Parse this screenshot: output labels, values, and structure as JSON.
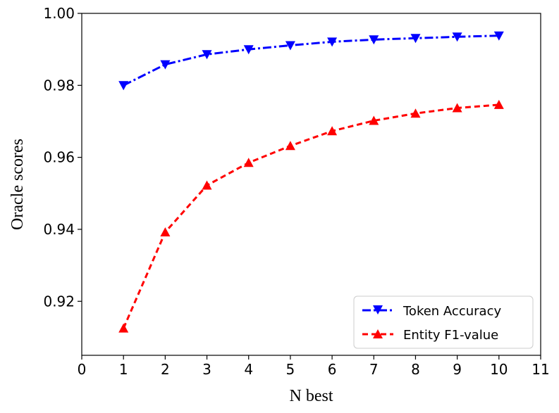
{
  "chart_data": {
    "type": "line",
    "xlabel": "N best",
    "ylabel": "Oracle scores",
    "xlim": [
      0,
      11
    ],
    "ylim": [
      0.905,
      1.0
    ],
    "xticks": [
      "0",
      "1",
      "2",
      "3",
      "4",
      "5",
      "6",
      "7",
      "8",
      "9",
      "10",
      "11"
    ],
    "yticks": [
      "0.92",
      "0.94",
      "0.96",
      "0.98",
      "1.00"
    ],
    "grid": false,
    "legend_position": "bottom-right",
    "x": [
      1,
      2,
      3,
      4,
      5,
      6,
      7,
      8,
      9,
      10
    ],
    "series": [
      {
        "name": "Token Accuracy",
        "color": "#0000ff",
        "linestyle": "dash-dot",
        "marker": "triangle-down",
        "values": [
          0.98,
          0.9858,
          0.9886,
          0.99,
          0.9911,
          0.9921,
          0.9927,
          0.9931,
          0.9935,
          0.9938
        ]
      },
      {
        "name": "Entity F1-value",
        "color": "#ff0000",
        "linestyle": "dashed",
        "marker": "triangle-up",
        "values": [
          0.9125,
          0.9392,
          0.9522,
          0.9585,
          0.9632,
          0.9673,
          0.9702,
          0.9722,
          0.9737,
          0.9746
        ]
      }
    ]
  }
}
